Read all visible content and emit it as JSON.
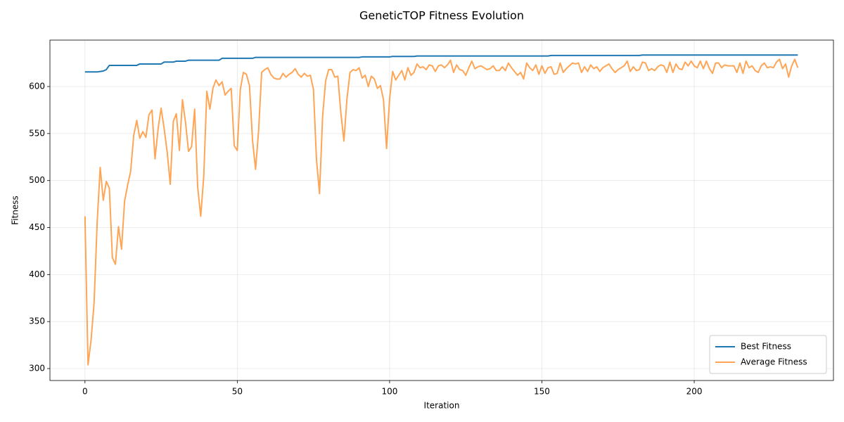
{
  "chart_data": {
    "type": "line",
    "title": "GeneticTOP Fitness Evolution",
    "xlabel": "Iteration",
    "ylabel": "Fitness",
    "x": [
      0,
      1,
      2,
      3,
      4,
      5,
      6,
      7,
      8,
      9,
      10,
      11,
      12,
      13,
      14,
      15,
      16,
      17,
      18,
      19,
      20,
      21,
      22,
      23,
      24,
      25,
      26,
      27,
      28,
      29,
      30,
      31,
      32,
      33,
      34,
      35,
      36,
      37,
      38,
      39,
      40,
      41,
      42,
      43,
      44,
      45,
      46,
      47,
      48,
      49,
      50,
      51,
      52,
      53,
      54,
      55,
      56,
      57,
      58,
      59,
      60,
      61,
      62,
      63,
      64,
      65,
      66,
      67,
      68,
      69,
      70,
      71,
      72,
      73,
      74,
      75,
      76,
      77,
      78,
      79,
      80,
      81,
      82,
      83,
      84,
      85,
      86,
      87,
      88,
      89,
      90,
      91,
      92,
      93,
      94,
      95,
      96,
      97,
      98,
      99,
      100,
      101,
      102,
      103,
      104,
      105,
      106,
      107,
      108,
      109,
      110,
      111,
      112,
      113,
      114,
      115,
      116,
      117,
      118,
      119,
      120,
      121,
      122,
      123,
      124,
      125,
      126,
      127,
      128,
      129,
      130,
      131,
      132,
      133,
      134,
      135,
      136,
      137,
      138,
      139,
      140,
      141,
      142,
      143,
      144,
      145,
      146,
      147,
      148,
      149,
      150,
      151,
      152,
      153,
      154,
      155,
      156,
      157,
      158,
      159,
      160,
      161,
      162,
      163,
      164,
      165,
      166,
      167,
      168,
      169,
      170,
      171,
      172,
      173,
      174,
      175,
      176,
      177,
      178,
      179,
      180,
      181,
      182,
      183,
      184,
      185,
      186,
      187,
      188,
      189,
      190,
      191,
      192,
      193,
      194,
      195,
      196,
      197,
      198,
      199,
      200,
      201,
      202,
      203,
      204,
      205,
      206,
      207,
      208,
      209,
      210,
      211,
      212,
      213,
      214,
      215,
      216,
      217,
      218,
      219,
      220,
      221,
      222,
      223,
      224,
      225,
      226,
      227,
      228,
      229,
      230,
      231,
      232,
      233,
      234
    ],
    "series": [
      {
        "name": "Best Fitness",
        "color": "#1f77b4",
        "values": [
          615.5,
          615.5,
          615.5,
          615.5,
          615.5,
          616,
          616.5,
          618,
          622.5,
          622.5,
          622.5,
          622.5,
          622.5,
          622.5,
          622.5,
          622.5,
          622.5,
          622.5,
          624,
          624,
          624,
          624,
          624,
          624,
          624,
          624,
          626,
          626,
          626,
          626,
          627,
          627,
          627,
          627,
          628,
          628,
          628,
          628,
          628,
          628,
          628,
          628,
          628,
          628,
          628,
          630,
          630,
          630,
          630,
          630,
          630,
          630,
          630,
          630,
          630,
          630,
          631,
          631,
          631,
          631,
          631,
          631,
          631,
          631,
          631,
          631,
          631,
          631,
          631,
          631,
          631,
          631,
          631,
          631,
          631,
          631,
          631,
          631,
          631,
          631,
          631,
          631,
          631,
          631,
          631,
          631,
          631,
          631,
          631,
          631,
          631,
          631.5,
          631.5,
          631.5,
          631.5,
          631.5,
          631.5,
          631.5,
          631.5,
          631.5,
          631.5,
          632,
          632,
          632,
          632,
          632,
          632,
          632,
          632,
          632.5,
          632.5,
          632.5,
          632.5,
          632.5,
          632.5,
          632.5,
          632.5,
          632.5,
          632.5,
          632.5,
          632.5,
          632.5,
          632.5,
          632.5,
          632.5,
          632.5,
          632.5,
          632.5,
          632.5,
          632.5,
          632.5,
          632.5,
          632.5,
          632.5,
          632.5,
          632.5,
          632.5,
          632.5,
          632.5,
          632.5,
          632.5,
          632.5,
          632.5,
          632.5,
          632.5,
          632.5,
          632.5,
          632.5,
          632.5,
          632.5,
          632.5,
          632.5,
          632.5,
          633,
          633,
          633,
          633,
          633,
          633,
          633,
          633,
          633,
          633,
          633,
          633,
          633,
          633,
          633,
          633,
          633,
          633,
          633,
          633,
          633,
          633,
          633,
          633,
          633,
          633,
          633,
          633,
          633,
          633,
          633.5,
          633.5,
          633.5,
          633.5,
          633.5,
          633.5,
          633.5,
          633.5,
          633.5,
          633.5,
          633.5,
          633.5,
          633.5,
          633.5,
          633.5,
          633.5,
          633.5,
          633.5,
          633.5,
          633.5,
          633.5,
          633.5,
          633.5,
          633.5,
          633.5,
          633.5,
          633.5,
          633.5,
          633.5,
          633.5,
          633.5,
          633.5,
          633.5,
          633.5,
          633.5,
          633.5,
          633.5,
          633.5,
          633.5,
          633.5,
          633.5,
          633.5,
          633.5,
          633.5,
          633.5,
          633.5,
          633.5,
          633.5,
          633.5,
          633.5,
          633.5,
          633.5
        ]
      },
      {
        "name": "Average Fitness",
        "color": "#ff7f0e",
        "values": [
          462,
          304,
          330,
          370,
          455,
          514,
          479,
          499,
          492,
          418,
          411,
          451,
          427,
          478,
          495,
          510,
          548,
          564,
          545,
          552,
          546,
          570,
          575,
          523,
          555,
          577,
          555,
          530,
          496,
          563,
          571,
          532,
          586,
          562,
          531,
          536,
          576,
          493,
          462,
          505,
          595,
          576,
          598,
          607,
          601,
          605,
          591,
          595,
          598,
          537,
          532,
          597,
          615,
          613,
          601,
          543,
          512,
          553,
          615,
          618,
          620,
          613,
          609,
          608,
          608,
          614,
          610,
          613,
          615,
          619,
          613,
          610,
          614,
          611,
          612,
          597,
          522,
          486,
          568,
          606,
          618,
          618,
          610,
          611,
          572,
          542,
          587,
          615,
          618,
          617,
          620,
          609,
          612,
          600,
          611,
          608,
          598,
          601,
          586,
          534,
          587,
          616,
          607,
          612,
          617,
          607,
          620,
          612,
          615,
          624,
          620,
          621,
          618,
          623,
          622,
          616,
          622,
          623,
          620,
          623,
          628,
          615,
          623,
          618,
          617,
          612,
          620,
          627,
          619,
          621,
          622,
          620,
          618,
          619,
          622,
          617,
          617,
          621,
          617,
          625,
          620,
          616,
          612,
          615,
          608,
          625,
          620,
          617,
          623,
          613,
          622,
          614,
          620,
          621,
          613,
          614,
          625,
          615,
          619,
          622,
          625,
          624,
          625,
          615,
          621,
          616,
          623,
          619,
          621,
          616,
          620,
          622,
          624,
          619,
          615,
          618,
          620,
          622,
          627,
          616,
          621,
          617,
          618,
          626,
          625,
          617,
          619,
          617,
          621,
          623,
          622,
          615,
          626,
          615,
          624,
          619,
          618,
          626,
          622,
          627,
          622,
          620,
          627,
          619,
          627,
          619,
          614,
          625,
          625,
          620,
          623,
          622,
          622,
          622,
          615,
          625,
          614,
          627,
          620,
          622,
          617,
          615,
          622,
          625,
          620,
          621,
          620,
          626,
          629,
          619,
          624,
          610,
          622,
          629,
          620
        ]
      }
    ],
    "xlim": [
      -11.5,
      245.7
    ],
    "ylim": [
      287.3,
      649.4
    ],
    "xticks": [
      0,
      50,
      100,
      150,
      200
    ],
    "yticks": [
      300,
      350,
      400,
      450,
      500,
      550,
      600
    ],
    "grid": true,
    "legend": "lower right"
  }
}
